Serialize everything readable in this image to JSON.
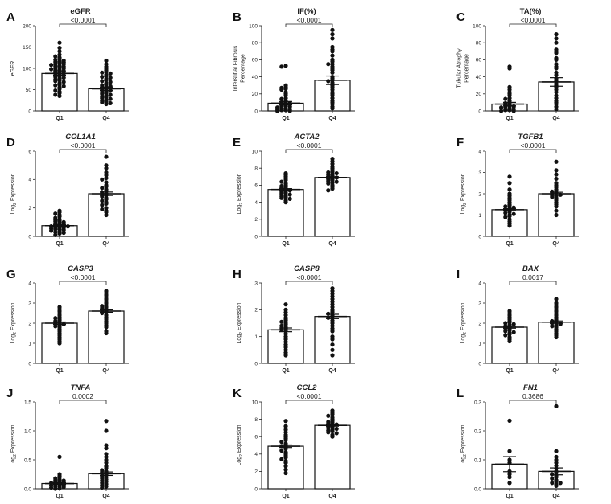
{
  "chart_data": [
    {
      "panel": "A",
      "type": "scatter-bar",
      "title": "eGFR",
      "italic": false,
      "ylabel": [
        "eGFR"
      ],
      "log_ylabel": false,
      "pvalue": "<0.0001",
      "ylim": [
        0,
        200
      ],
      "yticks": [
        "0",
        "50",
        "100",
        "150",
        "200"
      ],
      "categories": [
        "Q1",
        "Q4"
      ],
      "means": [
        88,
        52
      ],
      "sems": [
        4,
        4
      ],
      "points": [
        [
          160,
          148,
          140,
          132,
          128,
          125,
          122,
          120,
          118,
          116,
          115,
          114,
          112,
          110,
          110,
          108,
          106,
          105,
          104,
          102,
          100,
          100,
          98,
          96,
          95,
          94,
          92,
          90,
          88,
          86,
          84,
          82,
          80,
          78,
          76,
          74,
          72,
          70,
          68,
          65,
          62,
          60,
          58,
          55,
          52,
          48,
          45,
          42,
          38,
          35
        ],
        [
          118,
          110,
          104,
          100,
          96,
          92,
          90,
          88,
          85,
          82,
          80,
          78,
          75,
          72,
          70,
          68,
          65,
          62,
          60,
          58,
          56,
          55,
          54,
          52,
          50,
          48,
          46,
          44,
          42,
          40,
          38,
          36,
          34,
          32,
          30,
          28,
          26,
          24,
          22,
          20,
          18,
          16
        ]
      ]
    },
    {
      "panel": "B",
      "type": "scatter-bar",
      "title": "IF(%)",
      "italic": false,
      "ylabel": [
        "Interstitial Fibrosis",
        "Percentage"
      ],
      "log_ylabel": false,
      "pvalue": "<0.0001",
      "ylim": [
        0,
        100
      ],
      "yticks": [
        "0",
        "20",
        "40",
        "60",
        "80",
        "100"
      ],
      "categories": [
        "Q1",
        "Q4"
      ],
      "means": [
        9,
        36
      ],
      "sems": [
        2,
        5
      ],
      "points": [
        [
          53,
          52,
          30,
          28,
          27,
          26,
          25,
          22,
          20,
          18,
          15,
          14,
          12,
          11,
          10,
          9,
          8,
          7,
          6,
          5,
          5,
          4,
          3,
          3,
          2,
          2,
          1,
          1,
          0,
          0
        ],
        [
          95,
          90,
          85,
          75,
          72,
          70,
          65,
          60,
          58,
          55,
          55,
          52,
          50,
          48,
          45,
          40,
          38,
          36,
          35,
          33,
          30,
          28,
          25,
          22,
          20,
          18,
          15,
          12,
          10,
          8,
          5,
          3
        ]
      ]
    },
    {
      "panel": "C",
      "type": "scatter-bar",
      "title": "TA(%)",
      "italic": false,
      "ylabel": [
        "Tubular Atrophy",
        "Percentage"
      ],
      "log_ylabel": false,
      "pvalue": "<0.0001",
      "ylim": [
        0,
        100
      ],
      "yticks": [
        "0",
        "20",
        "40",
        "60",
        "80",
        "100"
      ],
      "categories": [
        "Q1",
        "Q4"
      ],
      "means": [
        8,
        34
      ],
      "sems": [
        2,
        5
      ],
      "points": [
        [
          52,
          50,
          28,
          25,
          22,
          20,
          18,
          15,
          14,
          12,
          10,
          9,
          8,
          7,
          6,
          5,
          5,
          4,
          3,
          2,
          2,
          1,
          1,
          0,
          0
        ],
        [
          90,
          85,
          80,
          72,
          70,
          68,
          62,
          60,
          55,
          52,
          50,
          45,
          42,
          38,
          35,
          32,
          30,
          28,
          25,
          22,
          18,
          15,
          12,
          10,
          8,
          5,
          2
        ]
      ]
    },
    {
      "panel": "D",
      "type": "scatter-bar",
      "title": "COL1A1",
      "italic": true,
      "ylabel": [
        "Expression"
      ],
      "log_ylabel": true,
      "pvalue": "<0.0001",
      "ylim": [
        0,
        6
      ],
      "yticks": [
        "0",
        "2",
        "4",
        "6"
      ],
      "categories": [
        "Q1",
        "Q4"
      ],
      "means": [
        0.75,
        3.0
      ],
      "sems": [
        0.06,
        0.12
      ],
      "points": [
        [
          1.8,
          1.7,
          1.6,
          1.5,
          1.4,
          1.3,
          1.2,
          1.15,
          1.1,
          1.05,
          1.0,
          0.95,
          0.9,
          0.85,
          0.8,
          0.8,
          0.75,
          0.7,
          0.7,
          0.65,
          0.6,
          0.6,
          0.55,
          0.5,
          0.5,
          0.45,
          0.4,
          0.35,
          0.3,
          0.25,
          0.2,
          0.1
        ],
        [
          5.6,
          5.0,
          4.8,
          4.5,
          4.3,
          4.1,
          4.0,
          3.8,
          3.6,
          3.5,
          3.4,
          3.3,
          3.2,
          3.1,
          3.0,
          3.0,
          2.9,
          2.8,
          2.7,
          2.6,
          2.5,
          2.4,
          2.3,
          2.2,
          2.0,
          1.9,
          1.8,
          1.7,
          1.5
        ]
      ]
    },
    {
      "panel": "E",
      "type": "scatter-bar",
      "title": "ACTA2",
      "italic": true,
      "ylabel": [
        "Expression"
      ],
      "log_ylabel": true,
      "pvalue": "<0.0001",
      "ylim": [
        0,
        10
      ],
      "yticks": [
        "0",
        "2",
        "4",
        "6",
        "8",
        "10"
      ],
      "categories": [
        "Q1",
        "Q4"
      ],
      "means": [
        5.5,
        6.9
      ],
      "sems": [
        0.1,
        0.1
      ],
      "points": [
        [
          7.4,
          7.2,
          7.0,
          6.8,
          6.6,
          6.4,
          6.2,
          6.0,
          5.9,
          5.8,
          5.7,
          5.6,
          5.5,
          5.4,
          5.3,
          5.2,
          5.1,
          5.0,
          4.9,
          4.8,
          4.7,
          4.6,
          4.5,
          4.4,
          4.2,
          4.0
        ],
        [
          9.1,
          8.8,
          8.5,
          8.2,
          8.0,
          7.8,
          7.6,
          7.5,
          7.4,
          7.3,
          7.2,
          7.1,
          7.0,
          6.9,
          6.8,
          6.7,
          6.6,
          6.5,
          6.4,
          6.3,
          6.2,
          6.0,
          5.8,
          5.6,
          5.4
        ]
      ]
    },
    {
      "panel": "F",
      "type": "scatter-bar",
      "title": "TGFB1",
      "italic": true,
      "ylabel": [
        "Expression"
      ],
      "log_ylabel": true,
      "pvalue": "<0.0001",
      "ylim": [
        0,
        4
      ],
      "yticks": [
        "0",
        "1",
        "2",
        "3",
        "4"
      ],
      "categories": [
        "Q1",
        "Q4"
      ],
      "means": [
        1.25,
        2.0
      ],
      "sems": [
        0.05,
        0.07
      ],
      "points": [
        [
          2.8,
          2.5,
          2.2,
          2.0,
          1.9,
          1.8,
          1.7,
          1.6,
          1.5,
          1.45,
          1.4,
          1.35,
          1.3,
          1.25,
          1.2,
          1.15,
          1.1,
          1.05,
          1.0,
          0.95,
          0.9,
          0.8,
          0.7,
          0.6,
          0.5
        ],
        [
          3.5,
          3.1,
          2.9,
          2.7,
          2.5,
          2.4,
          2.3,
          2.2,
          2.15,
          2.1,
          2.05,
          2.0,
          1.95,
          1.9,
          1.85,
          1.8,
          1.7,
          1.6,
          1.5,
          1.4,
          1.2,
          1.0
        ]
      ]
    },
    {
      "panel": "G",
      "type": "scatter-bar",
      "title": "CASP3",
      "italic": true,
      "ylabel": [
        "Expression"
      ],
      "log_ylabel": true,
      "pvalue": "<0.0001",
      "ylim": [
        0,
        4
      ],
      "yticks": [
        "0",
        "1",
        "2",
        "3",
        "4"
      ],
      "categories": [
        "Q1",
        "Q4"
      ],
      "means": [
        2.0,
        2.6
      ],
      "sems": [
        0.06,
        0.06
      ],
      "points": [
        [
          2.8,
          2.7,
          2.6,
          2.5,
          2.4,
          2.3,
          2.25,
          2.2,
          2.15,
          2.1,
          2.05,
          2.0,
          1.95,
          1.9,
          1.85,
          1.8,
          1.7,
          1.6,
          1.5,
          1.4,
          1.3,
          1.2,
          1.1,
          1.0
        ],
        [
          3.6,
          3.5,
          3.4,
          3.3,
          3.2,
          3.1,
          3.0,
          2.9,
          2.85,
          2.8,
          2.75,
          2.7,
          2.65,
          2.6,
          2.55,
          2.5,
          2.4,
          2.3,
          2.2,
          2.1,
          2.0,
          1.9,
          1.8,
          1.6,
          1.5
        ]
      ]
    },
    {
      "panel": "H",
      "type": "scatter-bar",
      "title": "CASP8",
      "italic": true,
      "ylabel": [
        "Expression"
      ],
      "log_ylabel": true,
      "pvalue": "<0.0001",
      "ylim": [
        0,
        3
      ],
      "yticks": [
        "0",
        "1",
        "2",
        "3"
      ],
      "categories": [
        "Q1",
        "Q4"
      ],
      "means": [
        1.25,
        1.75
      ],
      "sems": [
        0.07,
        0.08
      ],
      "points": [
        [
          2.2,
          2.0,
          1.9,
          1.8,
          1.7,
          1.65,
          1.6,
          1.55,
          1.5,
          1.45,
          1.4,
          1.35,
          1.3,
          1.25,
          1.2,
          1.1,
          1.0,
          0.9,
          0.8,
          0.7,
          0.6,
          0.5,
          0.4,
          0.3
        ],
        [
          2.8,
          2.7,
          2.6,
          2.5,
          2.4,
          2.3,
          2.2,
          2.1,
          2.0,
          1.95,
          1.9,
          1.85,
          1.8,
          1.75,
          1.7,
          1.6,
          1.5,
          1.4,
          1.3,
          1.2,
          1.0,
          0.9,
          0.7,
          0.5,
          0.3
        ]
      ]
    },
    {
      "panel": "I",
      "type": "scatter-bar",
      "title": "BAX",
      "italic": true,
      "ylabel": [
        "Expression"
      ],
      "log_ylabel": true,
      "pvalue": "0.0017",
      "ylim": [
        0,
        4
      ],
      "yticks": [
        "0",
        "1",
        "2",
        "3",
        "4"
      ],
      "categories": [
        "Q1",
        "Q4"
      ],
      "means": [
        1.8,
        2.05
      ],
      "sems": [
        0.05,
        0.06
      ],
      "points": [
        [
          2.6,
          2.5,
          2.4,
          2.3,
          2.2,
          2.1,
          2.05,
          2.0,
          1.95,
          1.9,
          1.85,
          1.8,
          1.75,
          1.7,
          1.65,
          1.6,
          1.55,
          1.5,
          1.45,
          1.4,
          1.3,
          1.2,
          1.1
        ],
        [
          3.2,
          3.0,
          2.9,
          2.8,
          2.7,
          2.6,
          2.5,
          2.4,
          2.3,
          2.2,
          2.15,
          2.1,
          2.05,
          2.0,
          1.95,
          1.9,
          1.85,
          1.8,
          1.7,
          1.6,
          1.5,
          1.4,
          1.3
        ]
      ]
    },
    {
      "panel": "J",
      "type": "scatter-bar",
      "title": "TNFA",
      "italic": true,
      "ylabel": [
        "Expression"
      ],
      "log_ylabel": true,
      "pvalue": "0.0002",
      "ylim": [
        0,
        1.5
      ],
      "yticks": [
        "0.0",
        "0.5",
        "1.0",
        "1.5"
      ],
      "categories": [
        "Q1",
        "Q4"
      ],
      "means": [
        0.09,
        0.26
      ],
      "sems": [
        0.015,
        0.03
      ],
      "points": [
        [
          0.55,
          0.25,
          0.22,
          0.2,
          0.18,
          0.16,
          0.15,
          0.14,
          0.13,
          0.12,
          0.11,
          0.1,
          0.09,
          0.08,
          0.07,
          0.06,
          0.05,
          0.04,
          0.03,
          0.02,
          0.01,
          0.0
        ],
        [
          1.17,
          1.0,
          0.75,
          0.7,
          0.6,
          0.55,
          0.5,
          0.45,
          0.4,
          0.38,
          0.35,
          0.32,
          0.3,
          0.28,
          0.26,
          0.24,
          0.22,
          0.2,
          0.18,
          0.16,
          0.14,
          0.12,
          0.1,
          0.08,
          0.06,
          0.04,
          0.02
        ]
      ]
    },
    {
      "panel": "K",
      "type": "scatter-bar",
      "title": "CCL2",
      "italic": true,
      "ylabel": [
        "Expression"
      ],
      "log_ylabel": true,
      "pvalue": "<0.0001",
      "ylim": [
        0,
        10
      ],
      "yticks": [
        "0",
        "2",
        "4",
        "6",
        "8",
        "10"
      ],
      "categories": [
        "Q1",
        "Q4"
      ],
      "means": [
        4.9,
        7.3
      ],
      "sems": [
        0.15,
        0.1
      ],
      "points": [
        [
          7.8,
          7.2,
          6.8,
          6.5,
          6.2,
          6.0,
          5.8,
          5.6,
          5.4,
          5.2,
          5.0,
          4.9,
          4.8,
          4.6,
          4.4,
          4.2,
          4.0,
          3.8,
          3.6,
          3.4,
          3.2,
          3.0,
          2.6,
          2.2,
          1.8
        ],
        [
          9.0,
          8.8,
          8.6,
          8.4,
          8.2,
          8.0,
          7.8,
          7.7,
          7.6,
          7.5,
          7.4,
          7.3,
          7.2,
          7.1,
          7.0,
          6.9,
          6.8,
          6.7,
          6.6,
          6.5,
          6.4,
          6.2,
          6.0
        ]
      ]
    },
    {
      "panel": "L",
      "type": "scatter-bar",
      "title": "FN1",
      "italic": true,
      "ylabel": [
        "Expression"
      ],
      "log_ylabel": true,
      "pvalue": "0.3686",
      "ylim": [
        0,
        0.3
      ],
      "yticks": [
        "0.0",
        "0.1",
        "0.2",
        "0.3"
      ],
      "categories": [
        "Q1",
        "Q4"
      ],
      "means": [
        0.085,
        0.06
      ],
      "sems": [
        0.026,
        0.012
      ],
      "points": [
        [
          0.235,
          0.13,
          0.1,
          0.09,
          0.06,
          0.05,
          0.04,
          0.02
        ],
        [
          0.285,
          0.13,
          0.11,
          0.1,
          0.09,
          0.08,
          0.07,
          0.06,
          0.055,
          0.05,
          0.045,
          0.04,
          0.035,
          0.03,
          0.025,
          0.02,
          0.02,
          0.015,
          0.01
        ]
      ]
    }
  ]
}
